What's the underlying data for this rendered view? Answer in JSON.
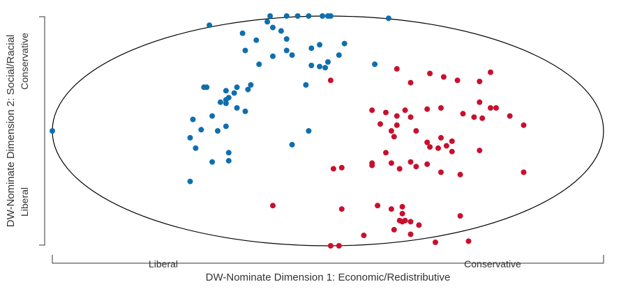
{
  "chart_data": {
    "type": "scatter",
    "title": "",
    "xlabel": "DW-Nominate Dimension 1: Economic/Redistributive",
    "ylabel": "DW-Nominate Dimension 2: Social/Racial",
    "x_end_labels": [
      "Liberal",
      "Conservative"
    ],
    "y_end_labels": [
      "Liberal",
      "Conservative"
    ],
    "xlim": [
      -1,
      1
    ],
    "ylim": [
      -1,
      1
    ],
    "grid": false,
    "boundary": "unit ellipse",
    "colors": {
      "blue": "#0f6fad",
      "red": "#c8102e",
      "outline": "#000000"
    },
    "series": [
      {
        "color": "blue",
        "points": [
          [
            -1.0,
            0.0
          ],
          [
            -0.43,
            0.92
          ],
          [
            -0.21,
            1.0
          ],
          [
            -0.15,
            1.0
          ],
          [
            -0.11,
            1.0
          ],
          [
            -0.07,
            1.0
          ],
          [
            -0.02,
            1.0
          ],
          [
            0.0,
            1.0
          ],
          [
            0.01,
            1.0
          ],
          [
            0.22,
            0.98
          ],
          [
            -0.22,
            0.95
          ],
          [
            -0.2,
            0.9
          ],
          [
            -0.31,
            0.85
          ],
          [
            -0.17,
            0.87
          ],
          [
            -0.15,
            0.8
          ],
          [
            -0.26,
            0.79
          ],
          [
            -0.03,
            0.75
          ],
          [
            -0.06,
            0.72
          ],
          [
            -0.15,
            0.7
          ],
          [
            0.06,
            0.76
          ],
          [
            -0.3,
            0.7
          ],
          [
            -0.2,
            0.65
          ],
          [
            -0.13,
            0.66
          ],
          [
            0.04,
            0.66
          ],
          [
            0.0,
            0.6
          ],
          [
            -0.06,
            0.57
          ],
          [
            -0.03,
            0.56
          ],
          [
            -0.01,
            0.55
          ],
          [
            -0.25,
            0.58
          ],
          [
            0.17,
            0.58
          ],
          [
            -0.28,
            0.4
          ],
          [
            -0.33,
            0.38
          ],
          [
            -0.37,
            0.35
          ],
          [
            -0.29,
            0.36
          ],
          [
            -0.08,
            0.4
          ],
          [
            -0.45,
            0.38
          ],
          [
            -0.44,
            0.38
          ],
          [
            -0.37,
            0.27
          ],
          [
            -0.39,
            0.25
          ],
          [
            -0.36,
            0.29
          ],
          [
            -0.34,
            0.33
          ],
          [
            -0.37,
            0.24
          ],
          [
            -0.3,
            0.17
          ],
          [
            -0.33,
            0.2
          ],
          [
            -0.42,
            0.13
          ],
          [
            -0.49,
            0.1
          ],
          [
            -0.37,
            0.04
          ],
          [
            -0.4,
            0.0
          ],
          [
            -0.46,
            0.01
          ],
          [
            -0.5,
            -0.06
          ],
          [
            -0.48,
            -0.15
          ],
          [
            -0.07,
            0.0
          ],
          [
            -0.13,
            -0.12
          ],
          [
            -0.42,
            -0.27
          ],
          [
            -0.5,
            -0.44
          ],
          [
            -0.36,
            -0.26
          ],
          [
            -0.36,
            -0.19
          ]
        ]
      },
      {
        "color": "red",
        "points": [
          [
            0.25,
            0.54
          ],
          [
            0.37,
            0.5
          ],
          [
            0.59,
            0.51
          ],
          [
            0.3,
            0.42
          ],
          [
            0.42,
            0.47
          ],
          [
            0.47,
            0.44
          ],
          [
            0.55,
            0.43
          ],
          [
            0.01,
            0.44
          ],
          [
            0.16,
            0.18
          ],
          [
            0.21,
            0.16
          ],
          [
            0.25,
            0.13
          ],
          [
            0.28,
            0.18
          ],
          [
            0.3,
            0.12
          ],
          [
            0.36,
            0.19
          ],
          [
            0.41,
            0.2
          ],
          [
            0.49,
            0.15
          ],
          [
            0.55,
            0.25
          ],
          [
            0.53,
            0.12
          ],
          [
            0.56,
            0.11
          ],
          [
            0.59,
            0.2
          ],
          [
            0.61,
            0.2
          ],
          [
            0.66,
            0.13
          ],
          [
            0.71,
            0.05
          ],
          [
            0.19,
            0.06
          ],
          [
            0.25,
            0.05
          ],
          [
            0.23,
            0.0
          ],
          [
            0.24,
            -0.05
          ],
          [
            0.32,
            0.0
          ],
          [
            0.36,
            -0.1
          ],
          [
            0.41,
            -0.06
          ],
          [
            0.37,
            -0.14
          ],
          [
            0.4,
            -0.15
          ],
          [
            0.43,
            -0.13
          ],
          [
            0.45,
            -0.09
          ],
          [
            0.45,
            -0.18
          ],
          [
            0.55,
            -0.17
          ],
          [
            0.3,
            -0.27
          ],
          [
            0.16,
            -0.28
          ],
          [
            0.16,
            -0.3
          ],
          [
            0.21,
            -0.19
          ],
          [
            0.23,
            -0.28
          ],
          [
            0.26,
            -0.33
          ],
          [
            0.02,
            -0.33
          ],
          [
            0.05,
            -0.32
          ],
          [
            0.36,
            -0.29
          ],
          [
            0.32,
            -0.31
          ],
          [
            0.41,
            -0.36
          ],
          [
            0.48,
            -0.38
          ],
          [
            0.71,
            -0.36
          ],
          [
            0.18,
            -0.65
          ],
          [
            0.23,
            -0.68
          ],
          [
            0.27,
            -0.72
          ],
          [
            0.48,
            -0.74
          ],
          [
            -0.2,
            -0.65
          ],
          [
            0.05,
            -0.68
          ],
          [
            0.26,
            -0.78
          ],
          [
            0.24,
            -0.86
          ],
          [
            0.28,
            -0.78
          ],
          [
            0.33,
            -0.82
          ],
          [
            0.27,
            -0.66
          ],
          [
            0.3,
            -0.79
          ],
          [
            0.27,
            -0.79
          ],
          [
            0.3,
            -0.9
          ],
          [
            0.01,
            -1.0
          ],
          [
            0.04,
            -1.0
          ],
          [
            0.39,
            -0.97
          ],
          [
            0.51,
            -0.96
          ],
          [
            0.13,
            -0.91
          ]
        ]
      }
    ]
  }
}
